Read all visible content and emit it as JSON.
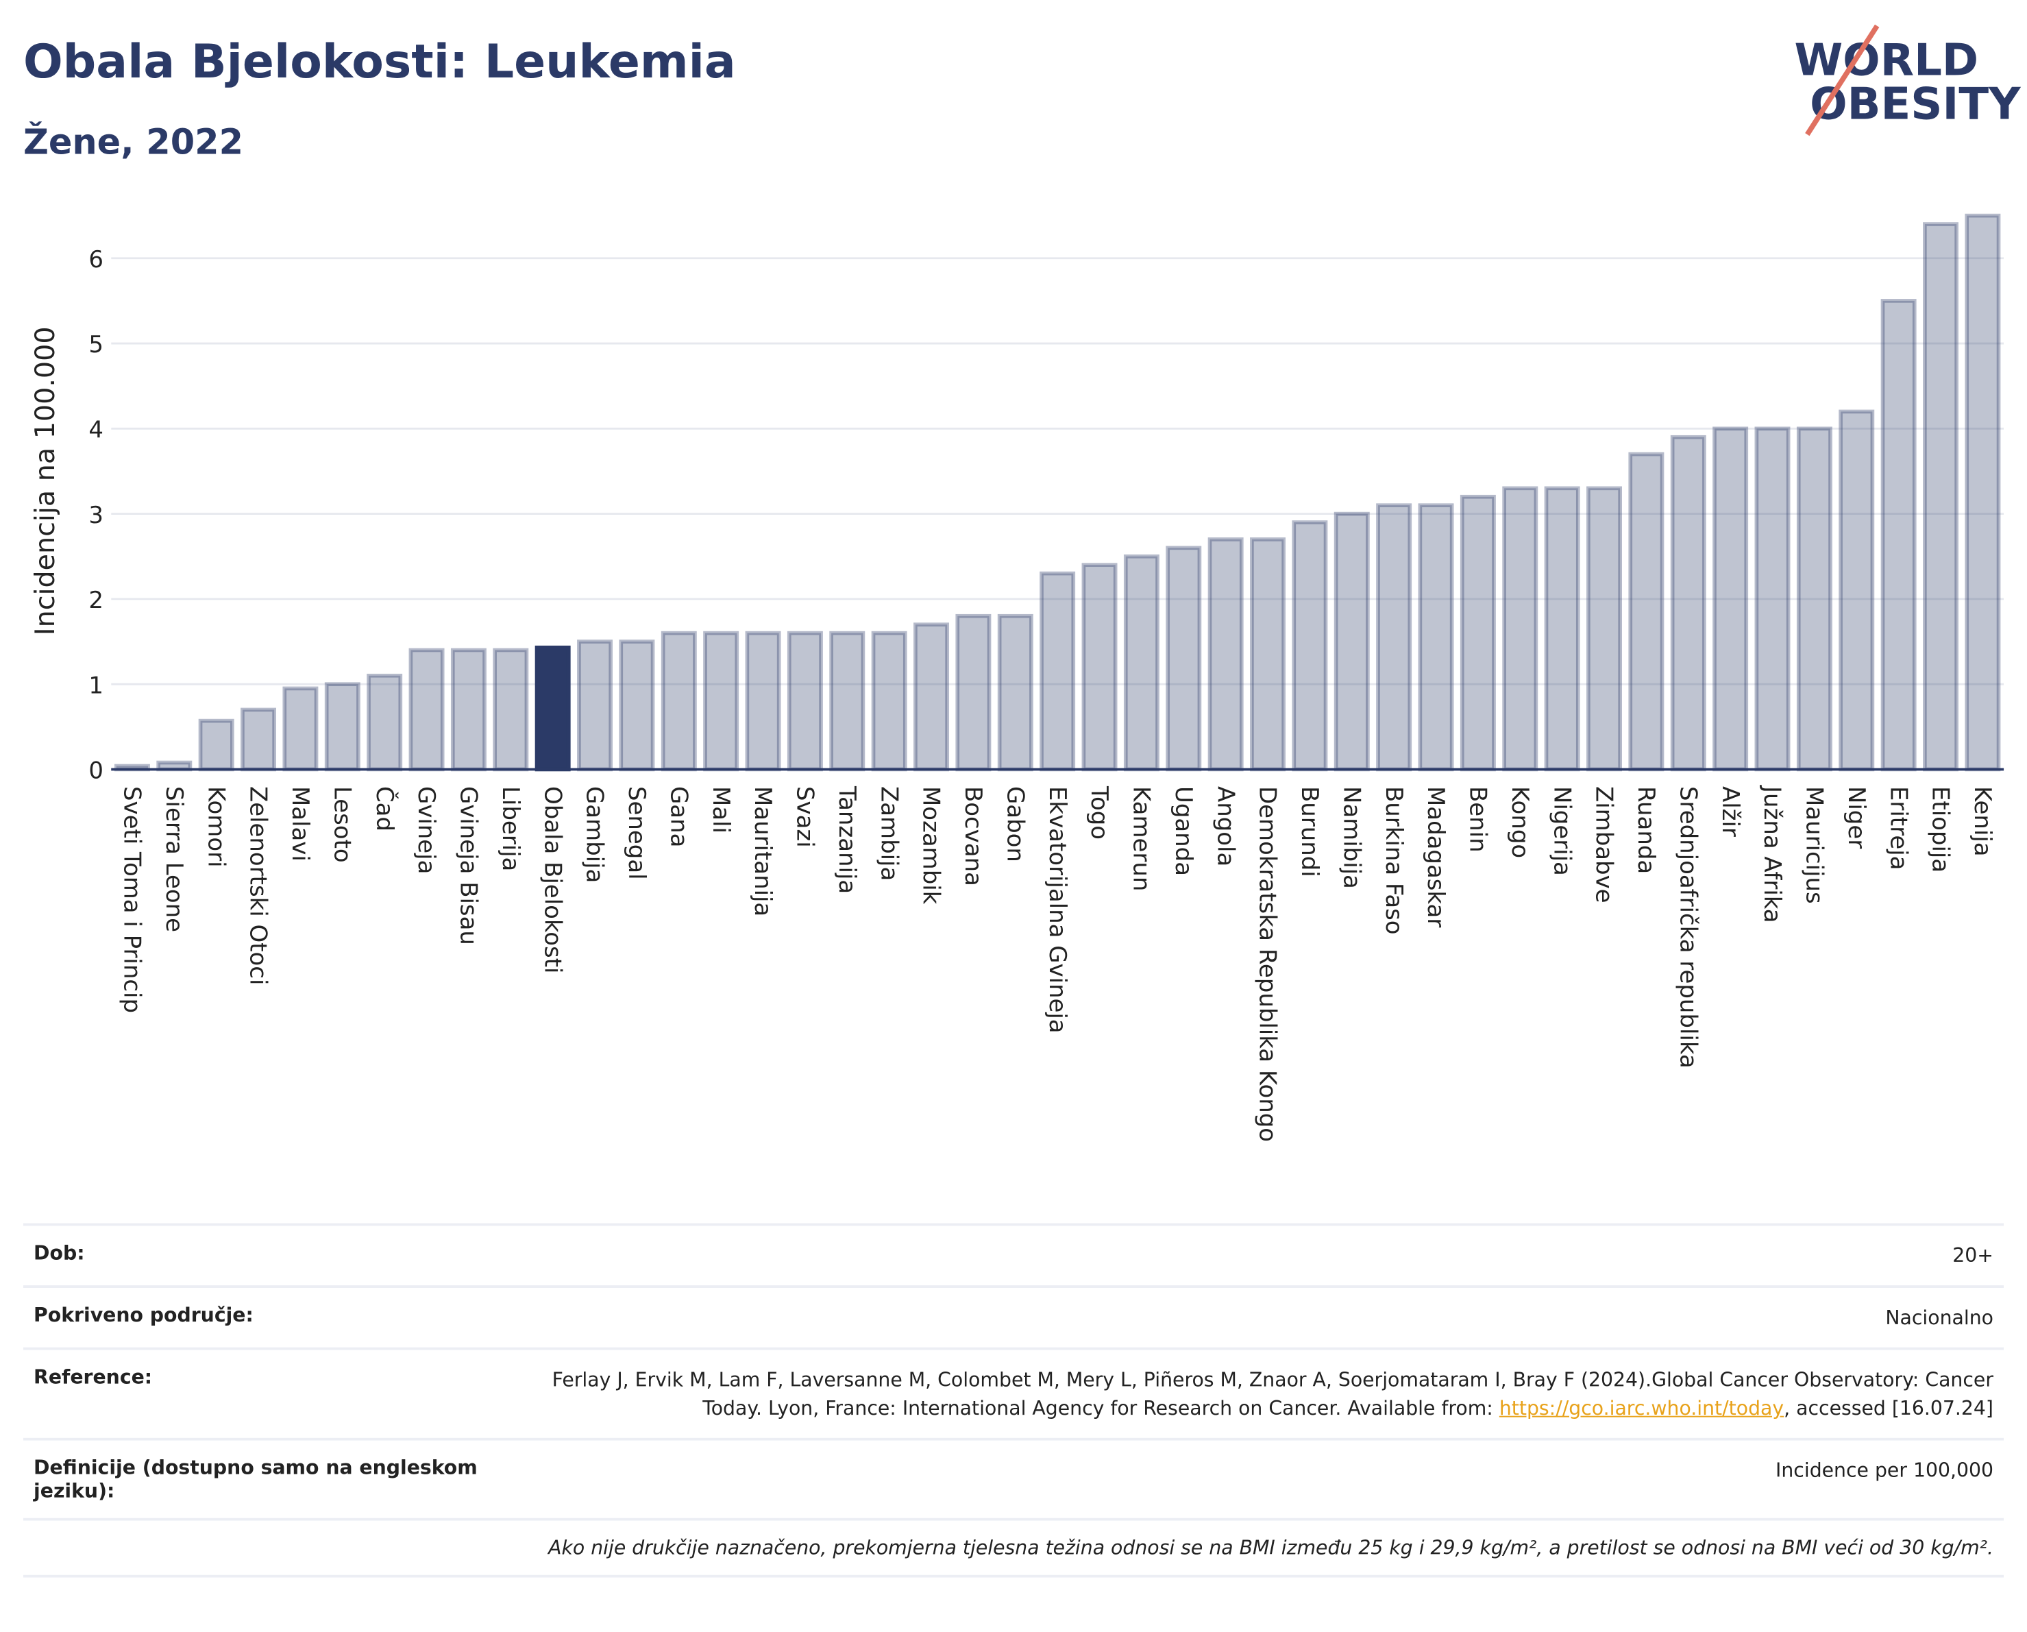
{
  "chart_data": {
    "type": "bar",
    "title": "Obala Bjelokosti: Leukemia",
    "subtitle": "Žene, 2022",
    "y_label": "Incidencija na 100.000",
    "categories": [
      "Sveti Toma i Princip",
      "Sierra Leone",
      "Komori",
      "Zelenortski Otoci",
      "Malavi",
      "Lesoto",
      "Čad",
      "Gvineja",
      "Gvineja Bisau",
      "Liberija",
      "Obala Bjelokosti",
      "Gambija",
      "Senegal",
      "Gana",
      "Mali",
      "Mauritanija",
      "Svazi",
      "Tanzanija",
      "Zambija",
      "Mozambik",
      "Bocvana",
      "Gabon",
      "Ekvatorijalna Gvineja",
      "Togo",
      "Kamerun",
      "Uganda",
      "Angola",
      "Demokratska Republika Kongo",
      "Burundi",
      "Namibija",
      "Burkina Faso",
      "Madagaskar",
      "Benin",
      "Kongo",
      "Nigerija",
      "Zimbabve",
      "Ruanda",
      "Srednjoafrička republika",
      "Alžir",
      "Južna Afrika",
      "Mauricijus",
      "Niger",
      "Eritreja",
      "Etiopija",
      "Kenija"
    ],
    "values": [
      0.04,
      0.08,
      0.57,
      0.7,
      0.95,
      1.0,
      1.1,
      1.4,
      1.4,
      1.4,
      1.43,
      1.5,
      1.5,
      1.6,
      1.6,
      1.6,
      1.6,
      1.6,
      1.6,
      1.7,
      1.8,
      1.8,
      2.3,
      2.4,
      2.5,
      2.6,
      2.7,
      2.7,
      2.9,
      3.0,
      3.1,
      3.1,
      3.2,
      3.3,
      3.3,
      3.3,
      3.7,
      3.9,
      4.0,
      4.0,
      4.0,
      4.2,
      5.5,
      6.4,
      6.5
    ],
    "color": "#2b3a67",
    "highlight_index": 10,
    "ylim": [
      0,
      6.8
    ],
    "yticks": [
      0,
      1,
      2,
      3,
      4,
      5,
      6
    ],
    "grid": true
  },
  "logo": {
    "line1": "WORLD",
    "line2": "OBESITY"
  },
  "footer": {
    "rows": [
      {
        "label": "Dob:",
        "value": "20+"
      },
      {
        "label": "Pokriveno područje:",
        "value": "Nacionalno"
      },
      {
        "label": "Reference:",
        "value": "Ferlay J, Ervik M, Lam F, Laversanne M, Colombet M, Mery L, Piñeros M, Znaor A, Soerjomataram I, Bray F (2024).Global Cancer Observatory: Cancer Today. Lyon, France: International Agency for Research on Cancer. Available from: ",
        "link": "https://gco.iarc.who.int/today",
        "after": ", accessed [16.07.24]"
      },
      {
        "label": "Definicije (dostupno samo na engleskom jeziku):",
        "value": "Incidence per 100,000"
      }
    ],
    "note": "Ako nije drukčije naznačeno, prekomjerna tjelesna težina odnosi se na BMI između 25 kg i 29,9 kg/m², a pretilost se odnosi na BMI veći od 30 kg/m²."
  }
}
